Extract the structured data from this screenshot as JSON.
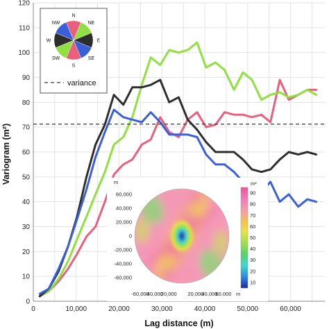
{
  "chart_data": {
    "type": "line",
    "xlabel": "Lag distance (m)",
    "ylabel": "Variogram (m²)",
    "xlim": [
      0,
      68000
    ],
    "ylim": [
      0,
      120
    ],
    "xticks": [
      0,
      10000,
      20000,
      30000,
      40000,
      50000,
      60000
    ],
    "xtick_labels": [
      "0",
      "10,000",
      "20,000",
      "30,000",
      "40,000",
      "50,000",
      "60,000"
    ],
    "yticks": [
      0,
      10,
      20,
      30,
      40,
      50,
      60,
      70,
      80,
      90,
      100,
      110,
      120
    ],
    "ytick_labels": [
      "0",
      "10",
      "20",
      "30",
      "40",
      "50",
      "60",
      "70",
      "80",
      "90",
      "100",
      "110",
      "120"
    ],
    "grid": true,
    "variance": 71.2,
    "legend": {
      "placement": "top-left",
      "variance_label": "variance",
      "compass_labels": [
        "N",
        "NE",
        "E",
        "SE",
        "S",
        "SW",
        "W",
        "NW"
      ]
    },
    "series": [
      {
        "direction": "N-S",
        "color": "#e8607e",
        "x": [
          1500,
          3600,
          5900,
          8100,
          10200,
          12400,
          14500,
          16700,
          18800,
          21000,
          23100,
          25300,
          27400,
          29600,
          31700,
          33900,
          36000,
          38200,
          40300,
          42500,
          44600,
          46800,
          48900,
          51000,
          53200,
          55300,
          57500,
          59600,
          61800,
          63900,
          66000
        ],
        "y": [
          2,
          4,
          8,
          13,
          19,
          26,
          30,
          40,
          51,
          55,
          57,
          63,
          65,
          74,
          68,
          66,
          73,
          76,
          70,
          71,
          76,
          75,
          75,
          74,
          75,
          72,
          89,
          81,
          83,
          85,
          85
        ]
      },
      {
        "direction": "NE-SW",
        "color": "#8fe040",
        "x": [
          1500,
          3600,
          5900,
          8100,
          10200,
          12400,
          14500,
          16700,
          18800,
          21000,
          23100,
          25300,
          27400,
          29600,
          31700,
          33900,
          36000,
          38200,
          40300,
          42500,
          44600,
          46800,
          48900,
          51000,
          53200,
          55300,
          57500,
          59600,
          61800,
          63900,
          66000
        ],
        "y": [
          2,
          4,
          9,
          16,
          25,
          34,
          43,
          52,
          63,
          66,
          74,
          87,
          98,
          95,
          101,
          100,
          101,
          104,
          94,
          96,
          93,
          85,
          92,
          89,
          81,
          83,
          84,
          82,
          83,
          85,
          83
        ]
      },
      {
        "direction": "E-W",
        "color": "#2d2d2d",
        "x": [
          1500,
          3600,
          5900,
          8100,
          10200,
          12400,
          14500,
          16700,
          18800,
          21000,
          23100,
          25300,
          27400,
          29600,
          31700,
          33900,
          36000,
          38200,
          40300,
          42500,
          44600,
          46800,
          48900,
          51000,
          53200,
          55300,
          57500,
          59600,
          61800,
          63900,
          66000
        ],
        "y": [
          2,
          5,
          12,
          22,
          34,
          50,
          63,
          71,
          83,
          79,
          86,
          86,
          87,
          89,
          80,
          82,
          73,
          69,
          64,
          60,
          60,
          60,
          57,
          53,
          52,
          53,
          57,
          60,
          59,
          60,
          59
        ]
      },
      {
        "direction": "SE-NW",
        "color": "#3a5fd9",
        "x": [
          1500,
          3600,
          5900,
          8100,
          10200,
          12400,
          14500,
          16700,
          18800,
          21000,
          23100,
          25300,
          27400,
          29600,
          31700,
          33900,
          36000,
          38200,
          40300,
          42500,
          44600,
          46800,
          48900,
          51000,
          53200,
          55300,
          57500,
          59600,
          61800,
          63900,
          66000
        ],
        "y": [
          3,
          5,
          13,
          22,
          33,
          45,
          58,
          68,
          77,
          74,
          73,
          72,
          76,
          72,
          67,
          67,
          67,
          66,
          59,
          55,
          55,
          52,
          48,
          42,
          44,
          48,
          40,
          43,
          38,
          41,
          40
        ]
      }
    ],
    "inset": {
      "type": "heatmap",
      "colorbar_label": "m²",
      "colorbar_ticks": [
        10,
        20,
        30,
        40,
        50,
        60,
        70,
        80,
        90
      ],
      "colorbar_range": [
        5,
        95
      ],
      "axis_ticks": [
        -60000,
        -40000,
        -20000,
        0,
        20000,
        40000,
        60000
      ],
      "axis_tick_labels": [
        "-60,000",
        "-40,000",
        "-20,000",
        "0",
        "20,000",
        "40,000",
        "60,000"
      ],
      "x_unit": "m",
      "y_unit": "m"
    }
  }
}
